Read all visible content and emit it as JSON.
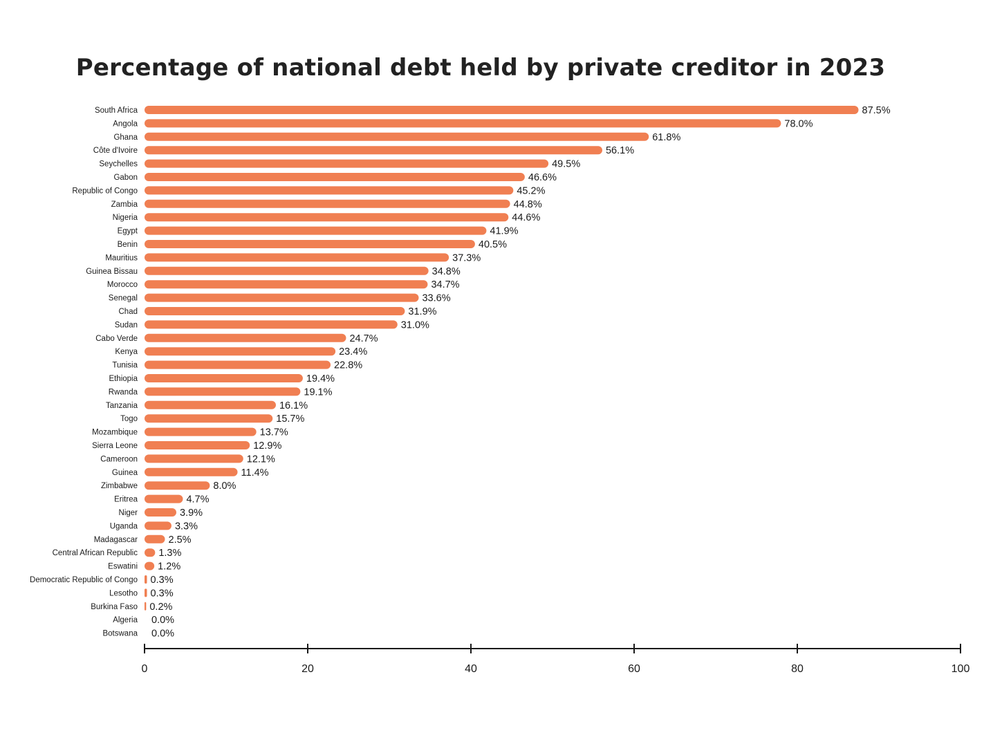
{
  "chart_data": {
    "type": "bar",
    "orientation": "horizontal",
    "title": "Percentage of national debt held by private creditor in 2023",
    "xlabel": "",
    "ylabel": "",
    "xlim": [
      0,
      100
    ],
    "x_ticks": [
      0,
      20,
      40,
      60,
      80,
      100
    ],
    "grid": false,
    "bar_color": "#F07F52",
    "categories": [
      "South Africa",
      "Angola",
      "Ghana",
      "Côte d'Ivoire",
      "Seychelles",
      "Gabon",
      "Republic of Congo",
      "Zambia",
      "Nigeria",
      "Egypt",
      "Benin",
      "Mauritius",
      "Guinea Bissau",
      "Morocco",
      "Senegal",
      "Chad",
      "Sudan",
      "Cabo Verde",
      "Kenya",
      "Tunisia",
      "Ethiopia",
      "Rwanda",
      "Tanzania",
      "Togo",
      "Mozambique",
      "Sierra Leone",
      "Cameroon",
      "Guinea",
      "Zimbabwe",
      "Eritrea",
      "Niger",
      "Uganda",
      "Madagascar",
      "Central African Republic",
      "Eswatini",
      "Democratic Republic of Congo",
      "Lesotho",
      "Burkina Faso",
      "Algeria",
      "Botswana"
    ],
    "values": [
      87.5,
      78.0,
      61.8,
      56.1,
      49.5,
      46.6,
      45.2,
      44.8,
      44.6,
      41.9,
      40.5,
      37.3,
      34.8,
      34.7,
      33.6,
      31.9,
      31.0,
      24.7,
      23.4,
      22.8,
      19.4,
      19.1,
      16.1,
      15.7,
      13.7,
      12.9,
      12.1,
      11.4,
      8.0,
      4.7,
      3.9,
      3.3,
      2.5,
      1.3,
      1.2,
      0.3,
      0.3,
      0.2,
      0.0,
      0.0
    ],
    "value_labels": [
      "87.5%",
      "78.0%",
      "61.8%",
      "56.1%",
      "49.5%",
      "46.6%",
      "45.2%",
      "44.8%",
      "44.6%",
      "41.9%",
      "40.5%",
      "37.3%",
      "34.8%",
      "34.7%",
      "33.6%",
      "31.9%",
      "31.0%",
      "24.7%",
      "23.4%",
      "22.8%",
      "19.4%",
      "19.1%",
      "16.1%",
      "15.7%",
      "13.7%",
      "12.9%",
      "12.1%",
      "11.4%",
      "8.0%",
      "4.7%",
      "3.9%",
      "3.3%",
      "2.5%",
      "1.3%",
      "1.2%",
      "0.3%",
      "0.3%",
      "0.2%",
      "0.0%",
      "0.0%"
    ]
  }
}
